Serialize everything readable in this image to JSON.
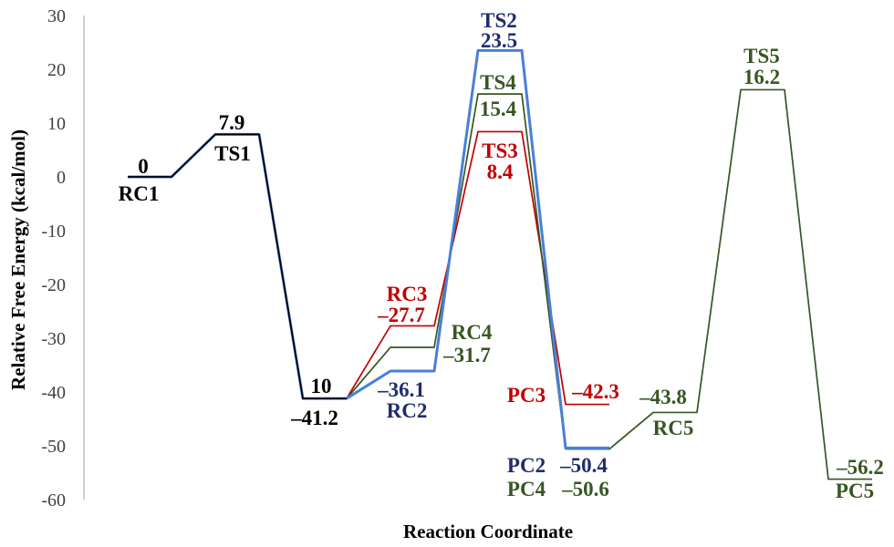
{
  "chart_data": {
    "type": "line",
    "title": "",
    "xlabel": "Reaction Coordinate",
    "ylabel": "Relative Free Energy (kcal/mol)",
    "ylim": [
      -60,
      30
    ],
    "yticks": [
      "30",
      "20",
      "10",
      "0",
      "-10",
      "-20",
      "-30",
      "-40",
      "-50",
      "-60"
    ],
    "ytick_values": [
      30,
      20,
      10,
      0,
      -10,
      -20,
      -30,
      -40,
      -50,
      -60
    ],
    "grid": false,
    "stages": 9,
    "series": [
      {
        "color": "#c00000",
        "values": [
          null,
          null,
          -41.2,
          -27.7,
          8.4,
          -42.3,
          null,
          null,
          null
        ]
      },
      {
        "color": "#375623",
        "values": [
          null,
          null,
          -41.2,
          -31.7,
          15.4,
          -50.6,
          -43.8,
          16.2,
          -56.2
        ]
      },
      {
        "color": "#4a7fd8",
        "values": [
          0,
          7.9,
          -41.2,
          -36.1,
          23.5,
          -50.4,
          null,
          null,
          null
        ]
      },
      {
        "color": "#000000",
        "values": [
          0,
          7.9,
          -41.2,
          null,
          null,
          null,
          null,
          null,
          null
        ]
      }
    ],
    "annotations": [
      {
        "text": "0",
        "color": "#000000"
      },
      {
        "text": "RC1",
        "color": "#000000"
      },
      {
        "text": "7.9",
        "color": "#000000"
      },
      {
        "text": "TS1",
        "color": "#000000"
      },
      {
        "text": "10",
        "color": "#000000"
      },
      {
        "text": "–41.2",
        "color": "#000000"
      },
      {
        "text": "RC3",
        "color": "#c00000"
      },
      {
        "text": "–27.7",
        "color": "#c00000"
      },
      {
        "text": "–36.1",
        "color": "#1f2d6b"
      },
      {
        "text": "RC2",
        "color": "#1f2d6b"
      },
      {
        "text": "RC4",
        "color": "#375623"
      },
      {
        "text": "–31.7",
        "color": "#375623"
      },
      {
        "text": "TS2",
        "color": "#1f2d6b"
      },
      {
        "text": "23.5",
        "color": "#1f2d6b"
      },
      {
        "text": "TS4",
        "color": "#375623"
      },
      {
        "text": "15.4",
        "color": "#375623"
      },
      {
        "text": "TS3",
        "color": "#c00000"
      },
      {
        "text": "8.4",
        "color": "#c00000"
      },
      {
        "text": "PC3",
        "color": "#c00000"
      },
      {
        "text": "–42.3",
        "color": "#c00000"
      },
      {
        "text": "–43.8",
        "color": "#375623"
      },
      {
        "text": "RC5",
        "color": "#375623"
      },
      {
        "text": "PC2",
        "color": "#1f2d6b"
      },
      {
        "text": "–50.4",
        "color": "#1f2d6b"
      },
      {
        "text": "PC4",
        "color": "#375623"
      },
      {
        "text": "–50.6",
        "color": "#375623"
      },
      {
        "text": "TS5",
        "color": "#375623"
      },
      {
        "text": "16.2",
        "color": "#375623"
      },
      {
        "text": "–56.2",
        "color": "#375623"
      },
      {
        "text": "PC5",
        "color": "#375623"
      }
    ]
  }
}
